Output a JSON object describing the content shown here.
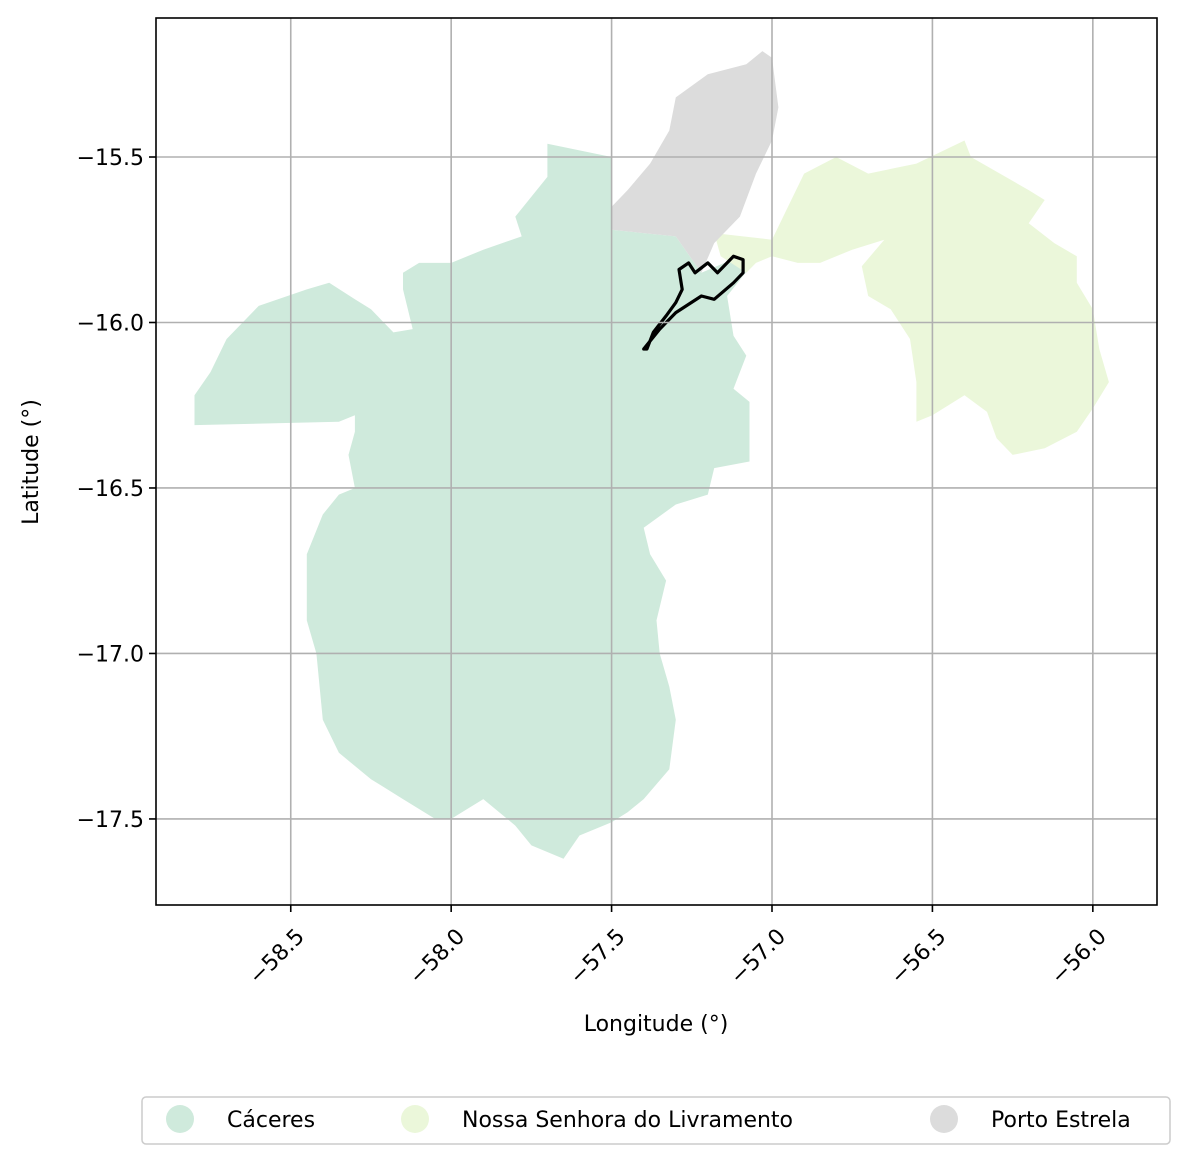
{
  "map": {
    "xlabel": "Longitude (°)",
    "ylabel": "Latitude (°)",
    "xlim": [
      -58.92,
      -55.8
    ],
    "ylim": [
      -17.76,
      -15.08
    ],
    "grid": true,
    "x_ticks": [
      {
        "value": -58.5,
        "label": "−58.5"
      },
      {
        "value": -58.0,
        "label": "−58.0"
      },
      {
        "value": -57.5,
        "label": "−57.5"
      },
      {
        "value": -57.0,
        "label": "−57.0"
      },
      {
        "value": -56.5,
        "label": "−56.5"
      },
      {
        "value": -56.0,
        "label": "−56.0"
      }
    ],
    "y_ticks": [
      {
        "value": -15.5,
        "label": "−15.5"
      },
      {
        "value": -16.0,
        "label": "−16.0"
      },
      {
        "value": -16.5,
        "label": "−16.5"
      },
      {
        "value": -17.0,
        "label": "−17.0"
      },
      {
        "value": -17.5,
        "label": "−17.5"
      }
    ],
    "regions": [
      {
        "name": "Cáceres",
        "color": "#cfeadc",
        "coords": [
          [
            -57.7,
            -15.46
          ],
          [
            -57.5,
            -15.5
          ],
          [
            -57.5,
            -15.72
          ],
          [
            -57.3,
            -15.74
          ],
          [
            -57.22,
            -15.85
          ],
          [
            -57.1,
            -15.8
          ],
          [
            -57.0,
            -15.75
          ],
          [
            -57.14,
            -15.92
          ],
          [
            -57.12,
            -16.04
          ],
          [
            -57.08,
            -16.1
          ],
          [
            -57.12,
            -16.2
          ],
          [
            -57.07,
            -16.24
          ],
          [
            -57.07,
            -16.42
          ],
          [
            -57.18,
            -16.44
          ],
          [
            -57.2,
            -16.52
          ],
          [
            -57.3,
            -16.55
          ],
          [
            -57.4,
            -16.62
          ],
          [
            -57.38,
            -16.7
          ],
          [
            -57.33,
            -16.78
          ],
          [
            -57.36,
            -16.9
          ],
          [
            -57.35,
            -17.0
          ],
          [
            -57.32,
            -17.1
          ],
          [
            -57.3,
            -17.2
          ],
          [
            -57.32,
            -17.35
          ],
          [
            -57.4,
            -17.44
          ],
          [
            -57.45,
            -17.48
          ],
          [
            -57.5,
            -17.51
          ],
          [
            -57.6,
            -17.55
          ],
          [
            -57.65,
            -17.62
          ],
          [
            -57.75,
            -17.58
          ],
          [
            -57.8,
            -17.52
          ],
          [
            -57.9,
            -17.44
          ],
          [
            -58.0,
            -17.5
          ],
          [
            -58.05,
            -17.5
          ],
          [
            -58.15,
            -17.44
          ],
          [
            -58.25,
            -17.38
          ],
          [
            -58.35,
            -17.3
          ],
          [
            -58.4,
            -17.2
          ],
          [
            -58.42,
            -17.0
          ],
          [
            -58.45,
            -16.9
          ],
          [
            -58.45,
            -16.7
          ],
          [
            -58.4,
            -16.58
          ],
          [
            -58.35,
            -16.52
          ],
          [
            -58.3,
            -16.5
          ],
          [
            -58.32,
            -16.4
          ],
          [
            -58.3,
            -16.33
          ],
          [
            -58.3,
            -16.28
          ],
          [
            -58.35,
            -16.3
          ],
          [
            -58.8,
            -16.31
          ],
          [
            -58.8,
            -16.22
          ],
          [
            -58.75,
            -16.15
          ],
          [
            -58.7,
            -16.05
          ],
          [
            -58.6,
            -15.95
          ],
          [
            -58.45,
            -15.9
          ],
          [
            -58.38,
            -15.88
          ],
          [
            -58.3,
            -15.93
          ],
          [
            -58.25,
            -15.96
          ],
          [
            -58.18,
            -16.03
          ],
          [
            -58.12,
            -16.02
          ],
          [
            -58.15,
            -15.9
          ],
          [
            -58.15,
            -15.85
          ],
          [
            -58.1,
            -15.82
          ],
          [
            -58.0,
            -15.82
          ],
          [
            -57.9,
            -15.78
          ],
          [
            -57.78,
            -15.74
          ],
          [
            -57.8,
            -15.68
          ],
          [
            -57.7,
            -15.56
          ]
        ]
      },
      {
        "name": "Nossa Senhora do Livramento",
        "color": "#ebf7da",
        "coords": [
          [
            -57.0,
            -15.75
          ],
          [
            -56.95,
            -15.65
          ],
          [
            -56.9,
            -15.55
          ],
          [
            -56.8,
            -15.5
          ],
          [
            -56.7,
            -15.55
          ],
          [
            -56.55,
            -15.52
          ],
          [
            -56.4,
            -15.45
          ],
          [
            -56.38,
            -15.5
          ],
          [
            -56.2,
            -15.6
          ],
          [
            -56.15,
            -15.63
          ],
          [
            -56.2,
            -15.7
          ],
          [
            -56.12,
            -15.76
          ],
          [
            -56.05,
            -15.8
          ],
          [
            -56.05,
            -15.88
          ],
          [
            -56.0,
            -15.96
          ],
          [
            -55.98,
            -16.08
          ],
          [
            -55.95,
            -16.18
          ],
          [
            -56.0,
            -16.26
          ],
          [
            -56.05,
            -16.33
          ],
          [
            -56.15,
            -16.38
          ],
          [
            -56.25,
            -16.4
          ],
          [
            -56.3,
            -16.35
          ],
          [
            -56.33,
            -16.27
          ],
          [
            -56.4,
            -16.22
          ],
          [
            -56.5,
            -16.28
          ],
          [
            -56.55,
            -16.3
          ],
          [
            -56.55,
            -16.18
          ],
          [
            -56.57,
            -16.05
          ],
          [
            -56.63,
            -15.96
          ],
          [
            -56.7,
            -15.92
          ],
          [
            -56.72,
            -15.83
          ],
          [
            -56.65,
            -15.75
          ],
          [
            -56.75,
            -15.78
          ],
          [
            -56.85,
            -15.82
          ],
          [
            -56.92,
            -15.82
          ],
          [
            -57.0,
            -15.8
          ],
          [
            -57.05,
            -15.82
          ],
          [
            -57.08,
            -15.85
          ],
          [
            -57.16,
            -15.8
          ],
          [
            -57.18,
            -15.73
          ]
        ]
      },
      {
        "name": "Porto Estrela",
        "color": "#dcdcdc",
        "coords": [
          [
            -57.5,
            -15.72
          ],
          [
            -57.3,
            -15.74
          ],
          [
            -57.22,
            -15.85
          ],
          [
            -57.18,
            -15.76
          ],
          [
            -57.1,
            -15.68
          ],
          [
            -57.05,
            -15.55
          ],
          [
            -57.0,
            -15.45
          ],
          [
            -56.98,
            -15.35
          ],
          [
            -57.0,
            -15.2
          ],
          [
            -57.03,
            -15.18
          ],
          [
            -57.08,
            -15.22
          ],
          [
            -57.2,
            -15.25
          ],
          [
            -57.3,
            -15.32
          ],
          [
            -57.32,
            -15.42
          ],
          [
            -57.38,
            -15.52
          ],
          [
            -57.45,
            -15.6
          ],
          [
            -57.5,
            -15.65
          ]
        ]
      }
    ],
    "outline": {
      "color": "#000000",
      "coords": [
        [
          -57.4,
          -16.08
        ],
        [
          -57.35,
          -16.02
        ],
        [
          -57.3,
          -15.97
        ],
        [
          -57.22,
          -15.92
        ],
        [
          -57.18,
          -15.93
        ],
        [
          -57.12,
          -15.88
        ],
        [
          -57.09,
          -15.85
        ],
        [
          -57.09,
          -15.81
        ],
        [
          -57.12,
          -15.8
        ],
        [
          -57.17,
          -15.85
        ],
        [
          -57.2,
          -15.82
        ],
        [
          -57.24,
          -15.85
        ],
        [
          -57.26,
          -15.82
        ],
        [
          -57.29,
          -15.84
        ],
        [
          -57.28,
          -15.9
        ],
        [
          -57.3,
          -15.94
        ],
        [
          -57.33,
          -15.98
        ],
        [
          -57.37,
          -16.03
        ],
        [
          -57.39,
          -16.08
        ]
      ]
    }
  },
  "legend": [
    {
      "label": "Cáceres",
      "color": "#cfeadc"
    },
    {
      "label": "Nossa Senhora do Livramento",
      "color": "#ebf7da"
    },
    {
      "label": "Porto Estrela",
      "color": "#dcdcdc"
    }
  ]
}
